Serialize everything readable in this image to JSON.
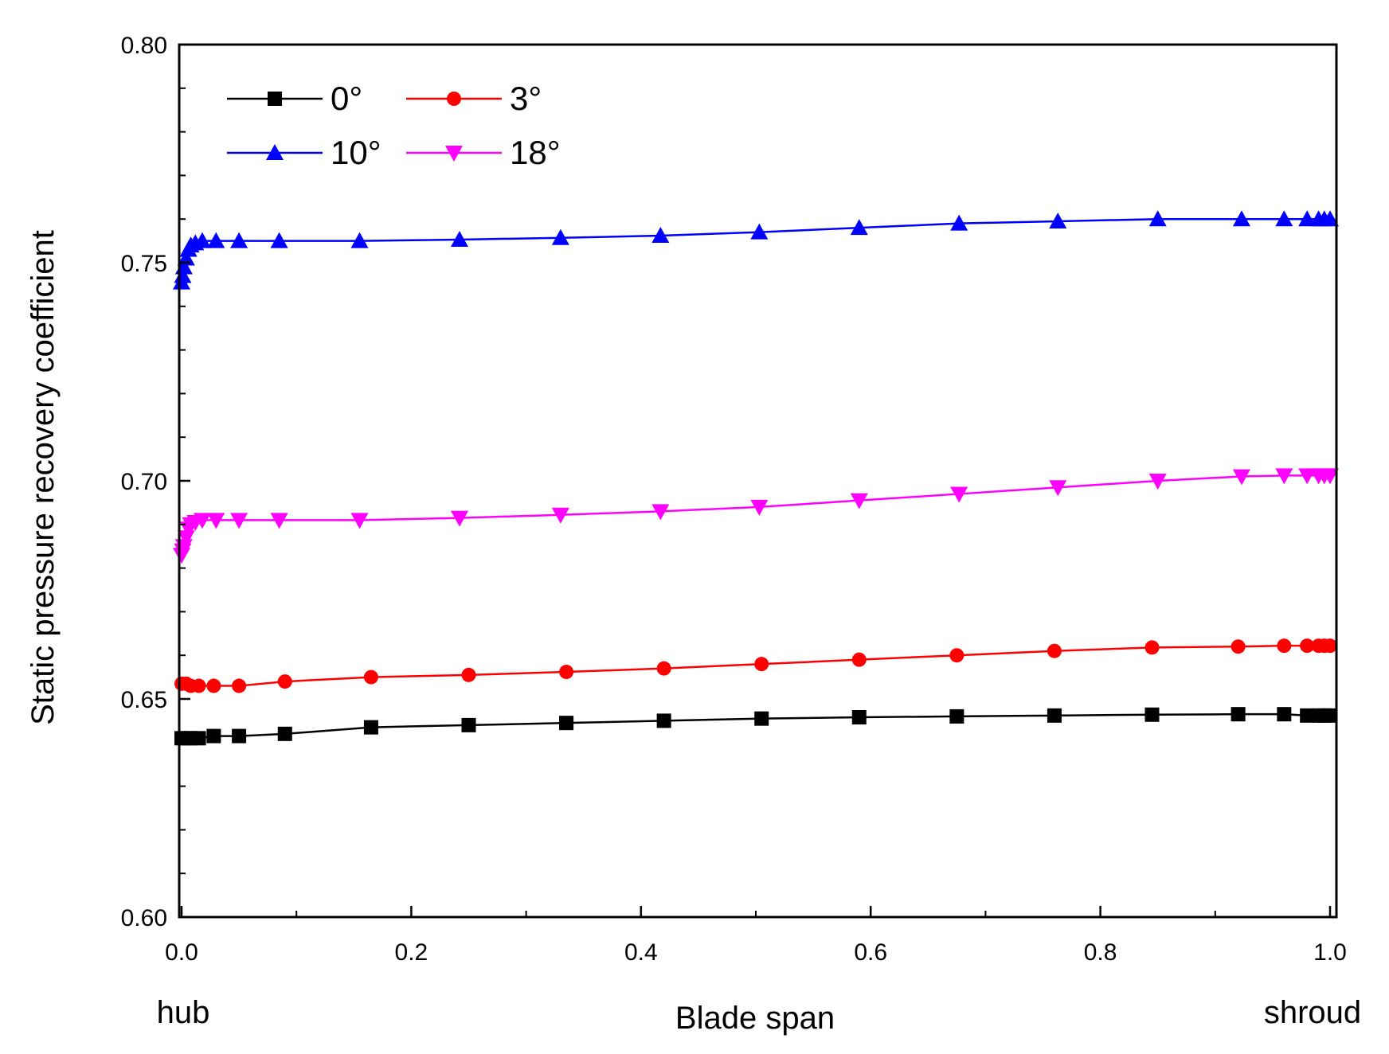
{
  "chart_data": {
    "type": "line",
    "xlabel": "Blade span",
    "ylabel": "Static pressure recovery coefficient",
    "x_end_labels": {
      "left": "hub",
      "right": "shroud"
    },
    "xlim": [
      0.0,
      1.0
    ],
    "ylim": [
      0.6,
      0.8
    ],
    "xticks": [
      0.0,
      0.2,
      0.4,
      0.6,
      0.8,
      1.0
    ],
    "xtick_labels": [
      "0.0",
      "0.2",
      "0.4",
      "0.6",
      "0.8",
      "1.0"
    ],
    "yticks": [
      0.6,
      0.65,
      0.7,
      0.75,
      0.8
    ],
    "ytick_labels": [
      "0.60",
      "0.65",
      "0.70",
      "0.75",
      "0.80"
    ],
    "legend_position": "top-left",
    "series": [
      {
        "name": "0°",
        "color": "#000000",
        "marker": "square",
        "x": [
          0.0,
          0.004,
          0.008,
          0.015,
          0.028,
          0.05,
          0.09,
          0.165,
          0.25,
          0.335,
          0.42,
          0.505,
          0.59,
          0.675,
          0.76,
          0.845,
          0.92,
          0.96,
          0.98,
          0.99,
          0.995,
          1.0
        ],
        "y": [
          0.641,
          0.641,
          0.641,
          0.641,
          0.6415,
          0.6415,
          0.642,
          0.6435,
          0.644,
          0.6445,
          0.645,
          0.6455,
          0.6458,
          0.646,
          0.6462,
          0.6464,
          0.6465,
          0.6465,
          0.6462,
          0.6462,
          0.6462,
          0.6462
        ]
      },
      {
        "name": "3°",
        "color": "#ff0000",
        "marker": "circle",
        "x": [
          0.0,
          0.004,
          0.008,
          0.015,
          0.028,
          0.05,
          0.09,
          0.165,
          0.25,
          0.335,
          0.42,
          0.505,
          0.59,
          0.675,
          0.76,
          0.845,
          0.92,
          0.96,
          0.98,
          0.99,
          0.995,
          1.0
        ],
        "y": [
          0.6535,
          0.6535,
          0.653,
          0.653,
          0.653,
          0.653,
          0.654,
          0.655,
          0.6555,
          0.6562,
          0.657,
          0.658,
          0.659,
          0.66,
          0.661,
          0.6618,
          0.662,
          0.6622,
          0.6622,
          0.6622,
          0.6622,
          0.6622
        ]
      },
      {
        "name": "10°",
        "color": "#0000ff",
        "marker": "triangle-up",
        "x": [
          0.0,
          0.001,
          0.002,
          0.004,
          0.006,
          0.008,
          0.012,
          0.018,
          0.03,
          0.05,
          0.085,
          0.155,
          0.242,
          0.33,
          0.417,
          0.503,
          0.59,
          0.677,
          0.763,
          0.85,
          0.923,
          0.96,
          0.98,
          0.99,
          0.995,
          1.0
        ],
        "y": [
          0.7455,
          0.747,
          0.749,
          0.751,
          0.753,
          0.754,
          0.7545,
          0.755,
          0.755,
          0.755,
          0.755,
          0.755,
          0.7553,
          0.7557,
          0.7562,
          0.757,
          0.758,
          0.759,
          0.7595,
          0.76,
          0.76,
          0.76,
          0.76,
          0.76,
          0.76,
          0.76
        ]
      },
      {
        "name": "18°",
        "color": "#ff00ff",
        "marker": "triangle-down",
        "x": [
          0.0,
          0.001,
          0.002,
          0.004,
          0.006,
          0.008,
          0.012,
          0.018,
          0.03,
          0.05,
          0.085,
          0.155,
          0.242,
          0.33,
          0.417,
          0.503,
          0.59,
          0.677,
          0.763,
          0.85,
          0.923,
          0.96,
          0.98,
          0.99,
          0.995,
          1.0
        ],
        "y": [
          0.683,
          0.684,
          0.685,
          0.687,
          0.689,
          0.69,
          0.6905,
          0.691,
          0.691,
          0.691,
          0.691,
          0.691,
          0.6915,
          0.6922,
          0.693,
          0.694,
          0.6955,
          0.697,
          0.6985,
          0.7,
          0.701,
          0.7012,
          0.7012,
          0.7012,
          0.7012,
          0.7012
        ]
      }
    ]
  }
}
